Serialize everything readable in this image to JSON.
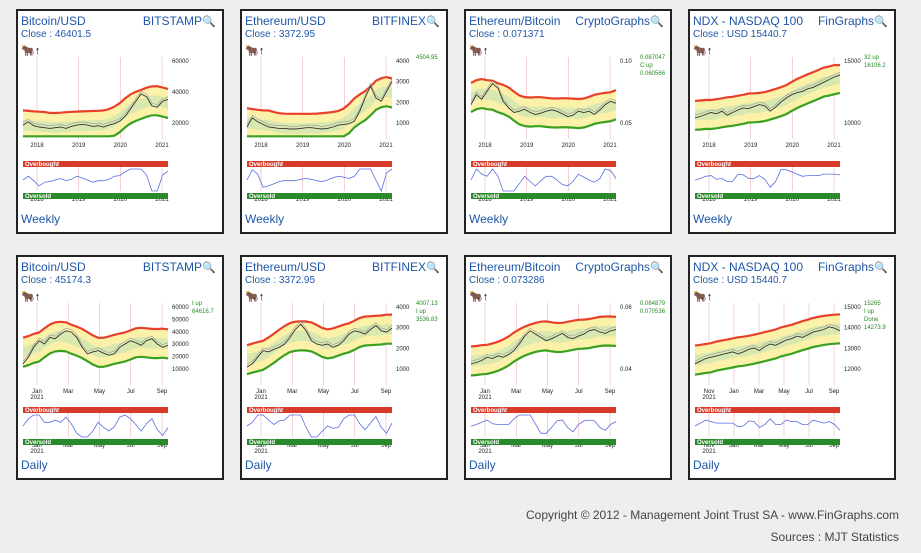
{
  "footer": {
    "copyright": "Copyright © 2012 - Management Joint Trust SA - www.FinGraphs.com",
    "sources": "Sources :   MJT Statistics"
  },
  "labels": {
    "overbought": "Overbought",
    "oversold": "Oversold"
  },
  "colors": {
    "title": "#1f57a8",
    "overbought": "#d83a2a",
    "oversold": "#2a8a2a",
    "upper": "#e8402a",
    "lower": "#3aa020",
    "price": "#333333",
    "rsi": "#5a6ee0"
  },
  "chart_data": [
    {
      "type": "line",
      "title": "Bitcoin/USD",
      "source": "BITSTAMP",
      "close": "Close : 46401.5",
      "period": "Weekly",
      "x_ticks": [
        "2018",
        "2019",
        "2020",
        "2021"
      ],
      "y_ticks": [
        "60000",
        "40000",
        "20000"
      ],
      "annotations": [],
      "price": [
        9,
        14,
        8,
        6,
        5,
        4,
        5,
        6,
        4,
        7,
        9,
        10,
        9,
        7,
        8,
        6,
        9,
        11,
        15,
        22,
        33,
        45,
        56,
        52,
        38,
        36,
        45,
        48
      ]
    },
    {
      "type": "line",
      "title": "Ethereum/USD",
      "source": "BITFINEX",
      "close": "Close : 3372.95",
      "period": "Weekly",
      "x_ticks": [
        "2018",
        "2019",
        "2020",
        "2021"
      ],
      "y_ticks": [
        "4000",
        "3000",
        "2000",
        "1000"
      ],
      "annotations": [
        "4504.95"
      ],
      "price": [
        6,
        20,
        14,
        10,
        6,
        5,
        4,
        4,
        3,
        3,
        4,
        5,
        5,
        4,
        3,
        4,
        6,
        9,
        10,
        11,
        15,
        30,
        50,
        68,
        50,
        45,
        60,
        75
      ]
    },
    {
      "type": "line",
      "title": "Ethereum/Bitcoin",
      "source": "CryptoGraphs",
      "close": "Close : 0.071371",
      "period": "Weekly",
      "x_ticks": [
        "2018",
        "2019",
        "2020",
        "2021"
      ],
      "y_ticks": [
        "0.10",
        "0.05"
      ],
      "annotations": [
        "0.087047",
        "C up",
        "0.060566"
      ],
      "price": [
        40,
        55,
        48,
        60,
        72,
        65,
        45,
        35,
        28,
        30,
        33,
        28,
        25,
        27,
        30,
        32,
        30,
        26,
        22,
        24,
        30,
        28,
        30,
        25,
        32,
        40,
        45,
        42
      ]
    },
    {
      "type": "line",
      "title": "NDX - NASDAQ 100",
      "source": "FinGraphs",
      "close": "Close : USD 15440.7",
      "period": "Weekly",
      "x_ticks": [
        "2018",
        "2019",
        "2020",
        "2021"
      ],
      "y_ticks": [
        "15000",
        "10000"
      ],
      "annotations": [
        "32 up",
        "16106.2"
      ],
      "price": [
        20,
        22,
        25,
        28,
        26,
        30,
        24,
        28,
        32,
        35,
        34,
        37,
        40,
        38,
        30,
        36,
        44,
        50,
        55,
        58,
        60,
        64,
        66,
        70,
        74,
        78,
        82,
        85
      ]
    },
    {
      "type": "line",
      "title": "Bitcoin/USD",
      "source": "BITSTAMP",
      "close": "Close : 45174.3",
      "period": "Daily",
      "x_ticks": [
        "Jan",
        "Mar",
        "May",
        "Jul",
        "Sep"
      ],
      "x_sub": "2021",
      "y_ticks": [
        "60000",
        "50000",
        "40000",
        "30000",
        "20000",
        "10000"
      ],
      "annotations": [
        "I up",
        "64616.7"
      ],
      "price": [
        20,
        30,
        45,
        55,
        50,
        60,
        58,
        65,
        70,
        68,
        60,
        45,
        35,
        38,
        40,
        36,
        33,
        35,
        45,
        50,
        55,
        52,
        48,
        55,
        58,
        50,
        45,
        48
      ]
    },
    {
      "type": "line",
      "title": "Ethereum/USD",
      "source": "BITFINEX",
      "close": "Close : 3372.95",
      "period": "Daily",
      "x_ticks": [
        "Jan",
        "Mar",
        "May",
        "Jul",
        "Sep"
      ],
      "x_sub": "2021",
      "y_ticks": [
        "4000",
        "3000",
        "2000",
        "1000"
      ],
      "annotations": [
        "4007.13",
        "I up",
        "3536.83"
      ],
      "price": [
        15,
        20,
        30,
        40,
        38,
        42,
        45,
        50,
        60,
        72,
        80,
        70,
        55,
        50,
        48,
        50,
        45,
        48,
        55,
        65,
        70,
        68,
        65,
        72,
        78,
        70,
        68,
        74
      ]
    },
    {
      "type": "line",
      "title": "Ethereum/Bitcoin",
      "source": "CryptoGraphs",
      "close": "Close : 0.073286",
      "period": "Daily",
      "x_ticks": [
        "Jan",
        "Mar",
        "May",
        "Jul",
        "Sep"
      ],
      "x_sub": "2021",
      "y_ticks": [
        "0.06",
        "0.04"
      ],
      "annotations": [
        "0.084879",
        "0.070536"
      ],
      "price": [
        20,
        22,
        25,
        30,
        28,
        32,
        30,
        34,
        40,
        50,
        62,
        70,
        65,
        60,
        55,
        58,
        62,
        66,
        60,
        58,
        62,
        65,
        70,
        72,
        68,
        66,
        70,
        72
      ]
    },
    {
      "type": "line",
      "title": "NDX - NASDAQ 100",
      "source": "FinGraphs",
      "close": "Close : USD 15440.7",
      "period": "Daily",
      "x_ticks": [
        "Nov",
        "Jan",
        "Mar",
        "May",
        "Jul",
        "Sep"
      ],
      "x_sub": "2021",
      "y_ticks": [
        "15000",
        "14000",
        "13000",
        "12000"
      ],
      "annotations": [
        "15265",
        "I up",
        "Done",
        "14273.9"
      ],
      "price": [
        20,
        24,
        28,
        30,
        32,
        34,
        36,
        38,
        35,
        38,
        42,
        44,
        40,
        46,
        50,
        48,
        52,
        56,
        58,
        62,
        60,
        64,
        68,
        70,
        72,
        76,
        74,
        70
      ]
    }
  ]
}
